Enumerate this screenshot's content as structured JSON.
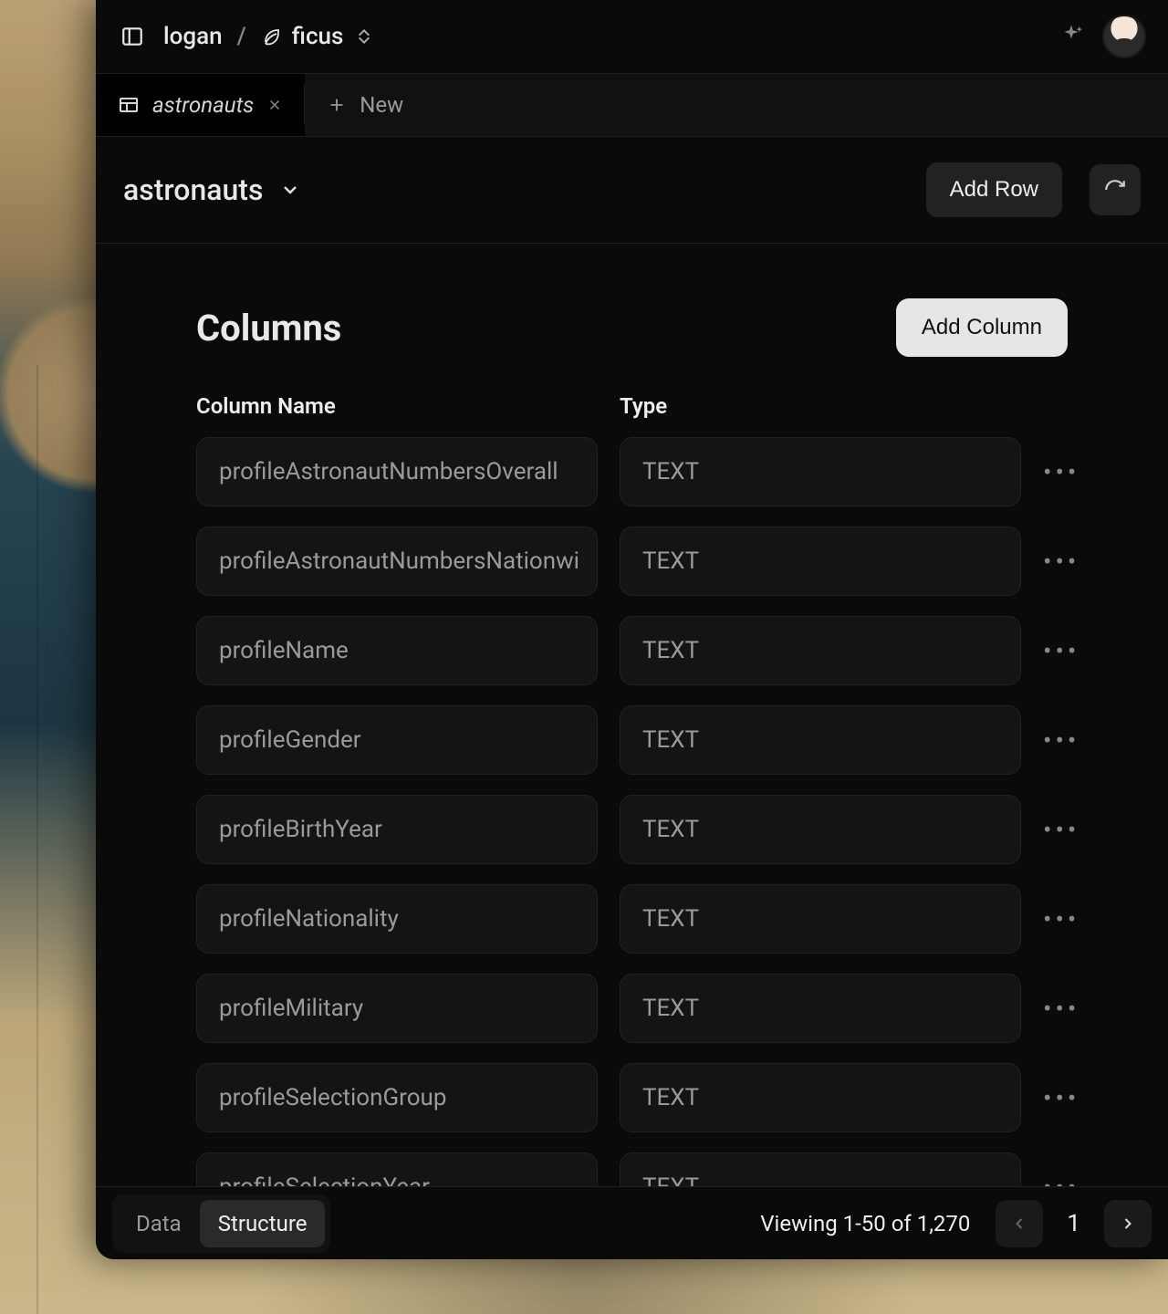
{
  "breadcrumb": {
    "owner": "logan",
    "project": "ficus"
  },
  "tabs": {
    "active": {
      "label": "astronauts"
    },
    "new_label": "New"
  },
  "title": "astronauts",
  "actions": {
    "add_row": "Add Row"
  },
  "section": {
    "heading": "Columns",
    "add_column": "Add Column",
    "headers": {
      "name": "Column Name",
      "type": "Type"
    }
  },
  "columns": [
    {
      "name": "profileAstronautNumbersOverall",
      "type": "TEXT"
    },
    {
      "name": "profileAstronautNumbersNationwi",
      "type": "TEXT"
    },
    {
      "name": "profileName",
      "type": "TEXT"
    },
    {
      "name": "profileGender",
      "type": "TEXT"
    },
    {
      "name": "profileBirthYear",
      "type": "TEXT"
    },
    {
      "name": "profileNationality",
      "type": "TEXT"
    },
    {
      "name": "profileMilitary",
      "type": "TEXT"
    },
    {
      "name": "profileSelectionGroup",
      "type": "TEXT"
    },
    {
      "name": "profileSelectionYear",
      "type": "TEXT"
    }
  ],
  "footer": {
    "tabs": {
      "data": "Data",
      "structure": "Structure"
    },
    "viewing": "Viewing 1-50 of 1,270",
    "page": "1"
  }
}
